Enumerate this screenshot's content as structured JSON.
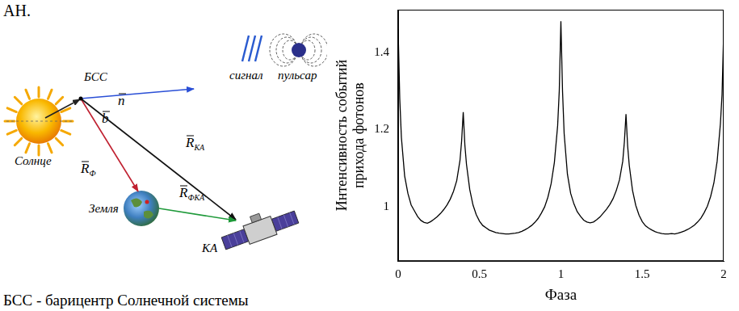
{
  "diagram": {
    "top_fragment": "АН.",
    "bss": "БСС",
    "sun": "Солнце",
    "earth": "Земля",
    "spacecraft": "КА",
    "signal": "сигнал",
    "pulsar": "пульсар",
    "vectors": [
      {
        "symbol": "n"
      },
      {
        "symbol": "b"
      },
      {
        "symbol": "R",
        "subscript": "Ф"
      },
      {
        "symbol": "R",
        "subscript": "КА"
      },
      {
        "symbol": "R",
        "subscript": "ФКА"
      }
    ],
    "caption": "БСС - барицентр Солнечной системы"
  },
  "chart_data": {
    "type": "line",
    "x_label": "Фаза",
    "y_label": "Интенсивность событий прихода фотонов",
    "color": "#000000",
    "grid": false,
    "xlim": [
      0,
      2
    ],
    "xticks": [
      0,
      0.5,
      1,
      1.5,
      2
    ],
    "ylim": [
      0.86,
      1.51
    ],
    "yticks": [
      1,
      1.2,
      1.4
    ],
    "x": [
      0,
      0.01,
      0.02,
      0.04,
      0.06,
      0.08,
      0.1,
      0.12,
      0.14,
      0.16,
      0.18,
      0.2,
      0.22,
      0.24,
      0.26,
      0.28,
      0.3,
      0.32,
      0.34,
      0.36,
      0.38,
      0.39,
      0.4,
      0.41,
      0.42,
      0.44,
      0.46,
      0.48,
      0.5,
      0.52,
      0.54,
      0.56,
      0.58,
      0.6,
      0.62,
      0.64,
      0.66,
      0.68,
      0.7,
      0.72,
      0.74,
      0.76,
      0.78,
      0.8,
      0.82,
      0.84,
      0.86,
      0.88,
      0.9,
      0.92,
      0.94,
      0.96,
      0.98,
      0.99,
      1,
      1.01,
      1.02,
      1.04,
      1.06,
      1.08,
      1.1,
      1.12,
      1.14,
      1.16,
      1.18,
      1.2,
      1.22,
      1.24,
      1.26,
      1.28,
      1.3,
      1.32,
      1.34,
      1.36,
      1.38,
      1.39,
      1.4,
      1.41,
      1.42,
      1.44,
      1.46,
      1.48,
      1.5,
      1.52,
      1.54,
      1.56,
      1.58,
      1.6,
      1.62,
      1.64,
      1.66,
      1.68,
      1.7,
      1.72,
      1.74,
      1.76,
      1.78,
      1.8,
      1.82,
      1.84,
      1.86,
      1.88,
      1.9,
      1.92,
      1.94,
      1.96,
      1.98,
      1.99,
      2
    ],
    "values": [
      1.46,
      1.28,
      1.18,
      1.08,
      1.035,
      1.005,
      0.99,
      0.975,
      0.965,
      0.96,
      0.958,
      0.962,
      0.968,
      0.975,
      0.983,
      0.993,
      1.005,
      1.02,
      1.04,
      1.068,
      1.12,
      1.17,
      1.245,
      1.16,
      1.11,
      1.045,
      1.005,
      0.98,
      0.963,
      0.952,
      0.946,
      0.94,
      0.937,
      0.934,
      0.932,
      0.931,
      0.93,
      0.93,
      0.931,
      0.932,
      0.934,
      0.937,
      0.941,
      0.946,
      0.952,
      0.96,
      0.97,
      0.984,
      1.0,
      1.025,
      1.06,
      1.115,
      1.21,
      1.3,
      1.48,
      1.3,
      1.19,
      1.085,
      1.035,
      1.008,
      0.988,
      0.976,
      0.966,
      0.961,
      0.959,
      0.961,
      0.967,
      0.974,
      0.984,
      0.994,
      1.006,
      1.021,
      1.042,
      1.07,
      1.118,
      1.168,
      1.24,
      1.158,
      1.108,
      1.043,
      1.004,
      0.979,
      0.962,
      0.951,
      0.945,
      0.94,
      0.936,
      0.933,
      0.931,
      0.93,
      0.93,
      0.931,
      0.93,
      0.932,
      0.935,
      0.938,
      0.942,
      0.947,
      0.953,
      0.961,
      0.971,
      0.985,
      1.002,
      1.027,
      1.062,
      1.118,
      1.215,
      1.29,
      1.45
    ]
  }
}
